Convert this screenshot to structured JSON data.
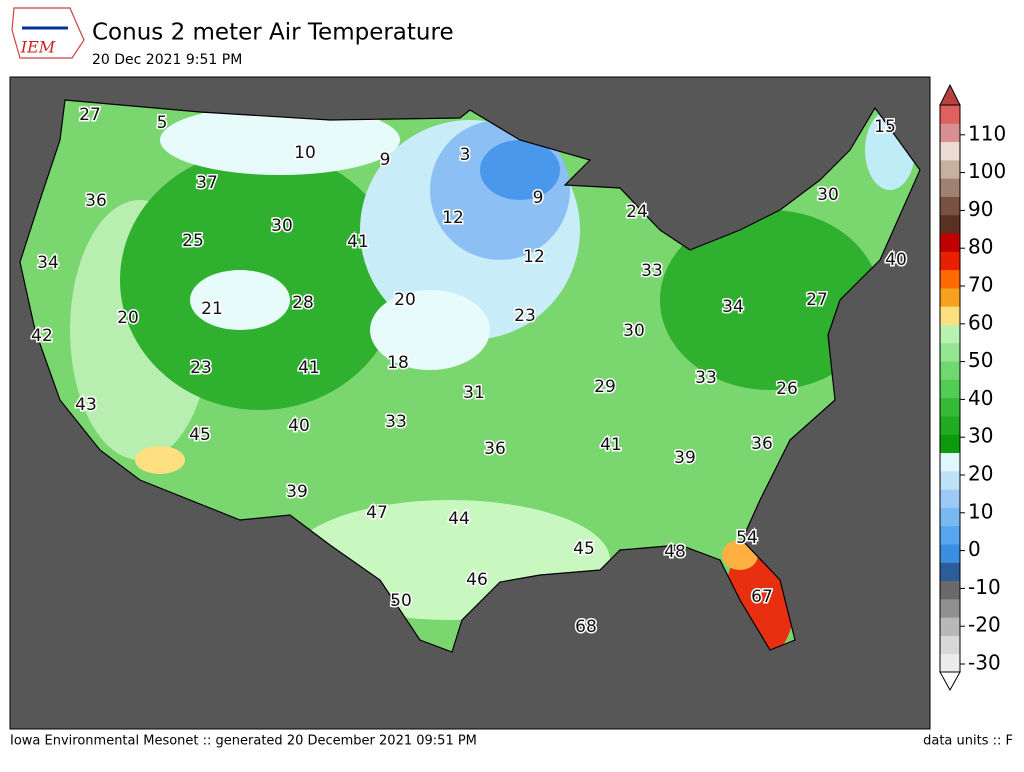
{
  "header": {
    "title": "Conus 2 meter Air Temperature",
    "subtitle": "20 Dec 2021 9:51 PM"
  },
  "logo": {
    "text": "IEM"
  },
  "map": {
    "labels": [
      27,
      5,
      10,
      9,
      3,
      15,
      37,
      36,
      9,
      30,
      24,
      12,
      30,
      41,
      25,
      34,
      12,
      40,
      33,
      20,
      28,
      21,
      34,
      27,
      20,
      23,
      42,
      30,
      18,
      41,
      23,
      33,
      26,
      29,
      31,
      43,
      33,
      40,
      45,
      36,
      41,
      36,
      39,
      39,
      47,
      44,
      54,
      45,
      48,
      46,
      67,
      50,
      68
    ]
  },
  "colorbar": {
    "ticks": [
      -30,
      -20,
      -10,
      0,
      10,
      20,
      30,
      40,
      50,
      60,
      70,
      80,
      90,
      100,
      110
    ]
  },
  "footer": {
    "left": "Iowa Environmental Mesonet :: generated 20 December 2021 09:51 PM",
    "right": "data units :: F"
  }
}
